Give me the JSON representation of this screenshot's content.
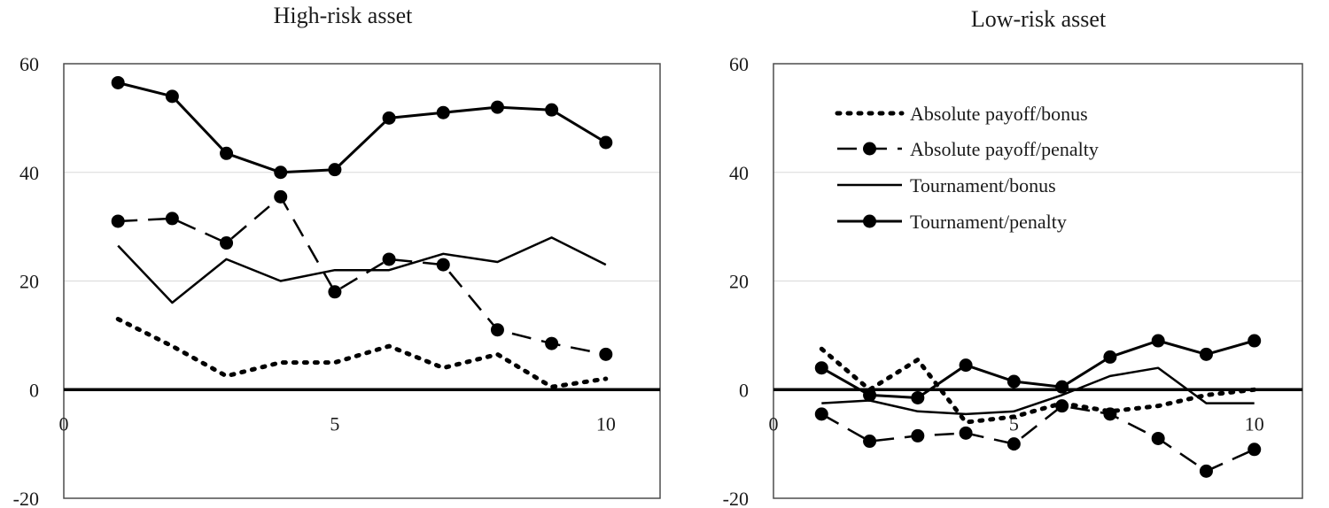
{
  "chart_data": [
    {
      "type": "line",
      "title": "High-risk asset",
      "xlabel": "",
      "ylabel": "",
      "xlim": [
        0,
        11
      ],
      "ylim": [
        -20,
        60
      ],
      "xticks": [
        "0",
        "5",
        "10"
      ],
      "yticks": [
        "60",
        "40",
        "20",
        "0",
        "-20"
      ],
      "x": [
        1,
        2,
        3,
        4,
        5,
        6,
        7,
        8,
        9,
        10
      ],
      "grid": "horizontal",
      "legend": "none",
      "series": [
        {
          "name": "Absolute payoff/bonus",
          "style": "dotted",
          "color": "#000000",
          "values": [
            13,
            8,
            2.5,
            5,
            5,
            8,
            4,
            6.5,
            0.5,
            2
          ]
        },
        {
          "name": "Absolute payoff/penalty",
          "style": "dashed-marker",
          "color": "#000000",
          "values": [
            31,
            31.5,
            27,
            35.5,
            18,
            24,
            23,
            11,
            8.5,
            6.5
          ]
        },
        {
          "name": "Tournament/bonus",
          "style": "solid",
          "color": "#000000",
          "values": [
            26.5,
            16,
            24,
            20,
            22,
            22,
            25,
            23.5,
            28,
            23
          ]
        },
        {
          "name": "Tournament/penalty",
          "style": "solid-marker",
          "color": "#000000",
          "values": [
            56.5,
            54,
            43.5,
            40,
            40.5,
            50,
            51,
            52,
            51.5,
            45.5
          ]
        }
      ]
    },
    {
      "type": "line",
      "title": "Low-risk asset",
      "xlabel": "",
      "ylabel": "",
      "xlim": [
        0,
        11
      ],
      "ylim": [
        -20,
        60
      ],
      "xticks": [
        "0",
        "5",
        "10"
      ],
      "yticks": [
        "60",
        "40",
        "20",
        "0",
        "-20"
      ],
      "x": [
        1,
        2,
        3,
        4,
        5,
        6,
        7,
        8,
        9,
        10
      ],
      "grid": "horizontal",
      "legend": "top-left inside",
      "series": [
        {
          "name": "Absolute payoff/bonus",
          "style": "dotted",
          "color": "#000000",
          "values": [
            7.5,
            0,
            5.5,
            -6,
            -5,
            -2.5,
            -4,
            -3,
            -1,
            0
          ]
        },
        {
          "name": "Absolute payoff/penalty",
          "style": "dashed-marker",
          "color": "#000000",
          "values": [
            -4.5,
            -9.5,
            -8.5,
            -8,
            -10,
            -3,
            -4.5,
            -9,
            -15,
            -11
          ]
        },
        {
          "name": "Tournament/bonus",
          "style": "solid",
          "color": "#000000",
          "values": [
            -2.5,
            -2,
            -4,
            -4.5,
            -4,
            -1,
            2.5,
            4,
            -2.5,
            -2.5
          ]
        },
        {
          "name": "Tournament/penalty",
          "style": "solid-marker",
          "color": "#000000",
          "values": [
            4,
            -1,
            -1.5,
            4.5,
            1.5,
            0.5,
            6,
            9,
            6.5,
            9
          ]
        }
      ]
    }
  ]
}
